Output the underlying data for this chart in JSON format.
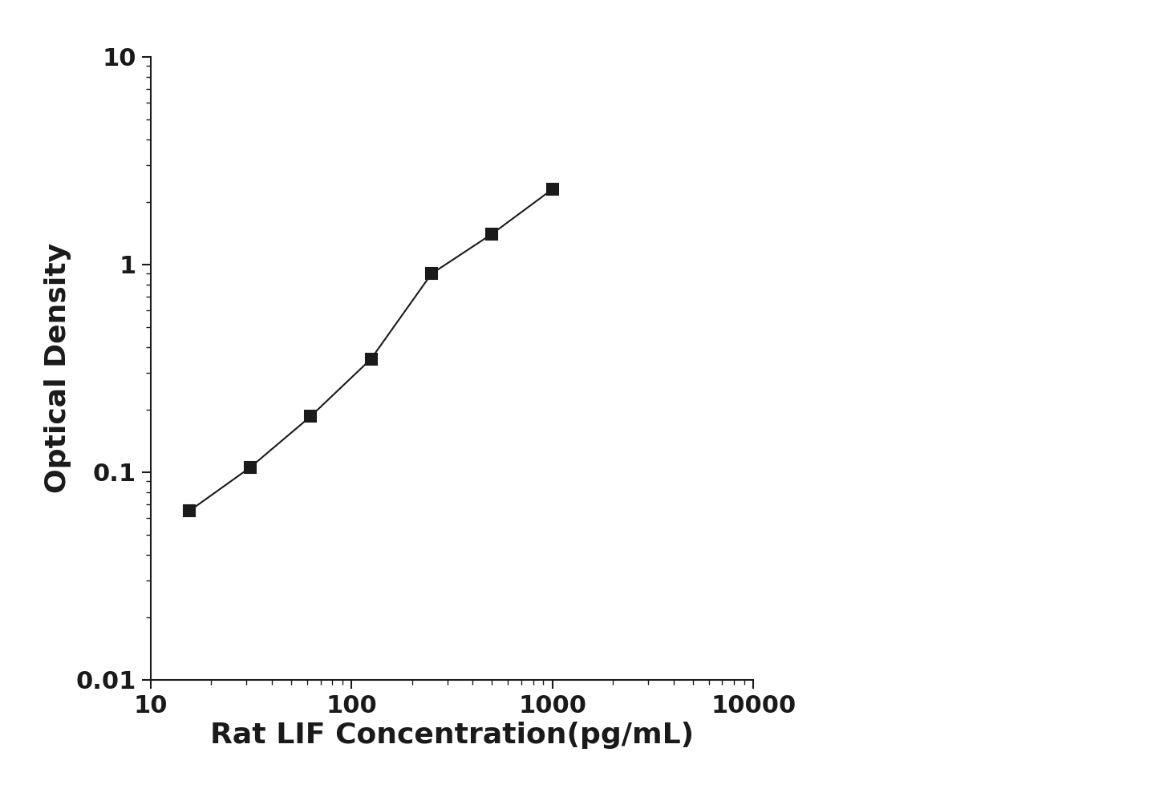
{
  "x": [
    15.625,
    31.25,
    62.5,
    125,
    250,
    500,
    1000
  ],
  "y": [
    0.065,
    0.105,
    0.185,
    0.35,
    0.9,
    1.4,
    2.3
  ],
  "xlabel": "Rat LIF Concentration(pg/mL)",
  "ylabel": "Optical Density",
  "xlim": [
    10,
    10000
  ],
  "ylim": [
    0.01,
    10
  ],
  "line_color": "#1a1a1a",
  "marker": "s",
  "marker_color": "#1a1a1a",
  "marker_size": 10,
  "line_width": 1.5,
  "xlabel_fontsize": 26,
  "ylabel_fontsize": 26,
  "tick_fontsize": 22,
  "background_color": "#ffffff",
  "spine_color": "#1a1a1a",
  "tick_fontweight": "bold"
}
